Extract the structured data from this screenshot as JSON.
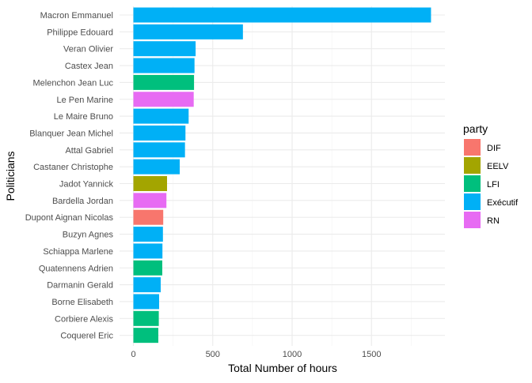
{
  "chart_data": {
    "type": "bar",
    "orientation": "horizontal",
    "xlabel": "Total Number of hours",
    "ylabel": "Politicians",
    "xlim": [
      0,
      1960
    ],
    "xticks": [
      0,
      500,
      1000,
      1500
    ],
    "grid": true,
    "legend": {
      "title": "party",
      "position": "right",
      "entries": [
        {
          "name": "DIF",
          "color": "#F8766D"
        },
        {
          "name": "EELV",
          "color": "#A3A500"
        },
        {
          "name": "LFI",
          "color": "#00BF7D"
        },
        {
          "name": "Exécutif",
          "color": "#00B0F6"
        },
        {
          "name": "RN",
          "color": "#E76BF3"
        }
      ]
    },
    "categories": [
      "Macron Emmanuel",
      "Philippe Edouard",
      "Veran Olivier",
      "Castex Jean",
      "Melenchon Jean Luc",
      "Le Pen Marine",
      "Le Maire Bruno",
      "Blanquer Jean Michel",
      "Attal Gabriel",
      "Castaner Christophe",
      "Jadot Yannick",
      "Bardella Jordan",
      "Dupont Aignan Nicolas",
      "Buzyn Agnes",
      "Schiappa Marlene",
      "Quatennens Adrien",
      "Darmanin Gerald",
      "Borne Elisabeth",
      "Corbiere Alexis",
      "Coquerel Eric"
    ],
    "values": [
      1875,
      690,
      392,
      385,
      382,
      380,
      348,
      328,
      325,
      292,
      212,
      208,
      188,
      186,
      183,
      182,
      172,
      162,
      160,
      157
    ],
    "party": [
      "Exécutif",
      "Exécutif",
      "Exécutif",
      "Exécutif",
      "LFI",
      "RN",
      "Exécutif",
      "Exécutif",
      "Exécutif",
      "Exécutif",
      "EELV",
      "RN",
      "DIF",
      "Exécutif",
      "Exécutif",
      "LFI",
      "Exécutif",
      "Exécutif",
      "LFI",
      "LFI"
    ]
  }
}
